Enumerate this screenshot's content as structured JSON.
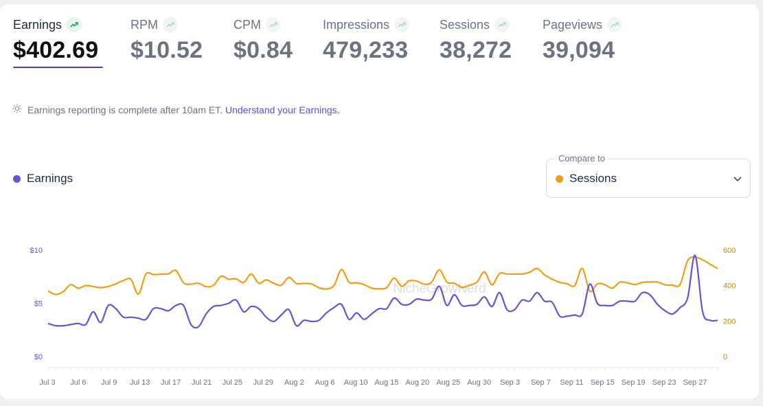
{
  "metrics": [
    {
      "label": "Earnings",
      "value": "$402.69",
      "active": true
    },
    {
      "label": "RPM",
      "value": "$10.52",
      "active": false
    },
    {
      "label": "CPM",
      "value": "$0.84",
      "active": false
    },
    {
      "label": "Impressions",
      "value": "479,233",
      "active": false
    },
    {
      "label": "Sessions",
      "value": "38,272",
      "active": false
    },
    {
      "label": "Pageviews",
      "value": "39,094",
      "active": false
    }
  ],
  "notice": {
    "text": "Earnings reporting is complete after 10am ET.",
    "link": "Understand your Earnings."
  },
  "legend": {
    "label": "Earnings"
  },
  "compare": {
    "caption": "Compare to",
    "selected": "Sessions"
  },
  "colors": {
    "earnings": "#6a4fd8",
    "sessions": "#f29c11",
    "accent": "#4c3fbf"
  },
  "chart_data": {
    "type": "line",
    "title": "",
    "watermark": "NicheGrowNerd",
    "y_left": {
      "ticks": [
        "$10",
        "$5",
        "$0"
      ],
      "range": [
        0,
        10
      ]
    },
    "y_right": {
      "ticks": [
        "600",
        "400",
        "200",
        "0"
      ],
      "range": [
        0,
        600
      ]
    },
    "x_tick_labels": [
      "Jul 3",
      "Jul 6",
      "Jul 9",
      "Jul 13",
      "Jul 17",
      "Jul 21",
      "Jul 25",
      "Jul 29",
      "Aug 2",
      "Aug 6",
      "Aug 10",
      "Aug 15",
      "Aug 20",
      "Aug 25",
      "Aug 30",
      "Sep 3",
      "Sep 7",
      "Sep 11",
      "Sep 15",
      "Sep 19",
      "Sep 23",
      "Sep 27"
    ],
    "series": [
      {
        "name": "Earnings",
        "axis": "left",
        "values": [
          3.1,
          2.9,
          2.9,
          3.0,
          3.1,
          3.0,
          4.2,
          3.2,
          4.8,
          4.5,
          3.7,
          3.7,
          3.6,
          3.5,
          4.5,
          4.5,
          4.3,
          4.8,
          4.8,
          3.0,
          2.8,
          4.0,
          4.7,
          4.8,
          5.0,
          5.3,
          4.2,
          4.7,
          4.5,
          3.7,
          3.3,
          3.9,
          4.4,
          2.9,
          3.4,
          3.3,
          3.4,
          4.1,
          4.6,
          4.9,
          3.5,
          4.1,
          3.5,
          4.0,
          4.5,
          4.5,
          5.5,
          4.9,
          4.9,
          5.4,
          5.3,
          5.4,
          6.6,
          4.8,
          5.8,
          4.8,
          4.8,
          4.9,
          5.6,
          4.7,
          6.0,
          4.4,
          4.4,
          5.3,
          5.2,
          6.0,
          5.2,
          5.1,
          3.8,
          3.8,
          3.9,
          4.0,
          6.8,
          5.0,
          4.8,
          4.8,
          5.2,
          5.2,
          5.2,
          6.0,
          5.8,
          4.9,
          4.3,
          4.0,
          4.6,
          5.5,
          9.5,
          4.2,
          3.4,
          3.4
        ]
      },
      {
        "name": "Sessions",
        "axis": "right",
        "values": [
          370,
          350,
          365,
          405,
          385,
          400,
          395,
          388,
          395,
          410,
          428,
          436,
          352,
          465,
          462,
          464,
          466,
          485,
          416,
          408,
          413,
          394,
          402,
          453,
          436,
          438,
          417,
          465,
          413,
          432,
          413,
          402,
          446,
          412,
          412,
          409,
          388,
          381,
          400,
          490,
          419,
          416,
          405,
          386,
          382,
          388,
          442,
          396,
          427,
          425,
          408,
          420,
          489,
          420,
          413,
          390,
          402,
          419,
          477,
          404,
          468,
          465,
          465,
          465,
          475,
          496,
          460,
          436,
          418,
          410,
          400,
          497,
          368,
          409,
          405,
          385,
          419,
          415,
          406,
          418,
          420,
          420,
          404,
          402,
          406,
          540,
          560,
          545,
          520,
          495
        ]
      }
    ]
  }
}
